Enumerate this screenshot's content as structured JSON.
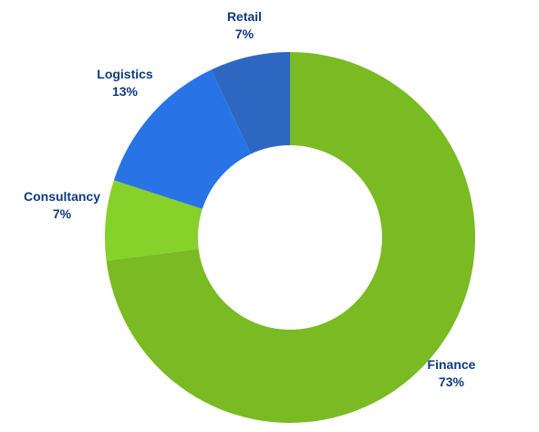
{
  "chart_data": {
    "type": "pie",
    "donut": true,
    "start_angle_deg": 0,
    "direction": "clockwise",
    "label_color": "#0d3b80",
    "slices": [
      {
        "label": "Finance",
        "value": 73,
        "value_label": "73%",
        "color": "#7aba23"
      },
      {
        "label": "Consultancy",
        "value": 7,
        "value_label": "7%",
        "color": "#86d12a"
      },
      {
        "label": "Logistics",
        "value": 13,
        "value_label": "13%",
        "color": "#2874e6"
      },
      {
        "label": "Retail",
        "value": 7,
        "value_label": "7%",
        "color": "#2e67c2"
      }
    ]
  }
}
